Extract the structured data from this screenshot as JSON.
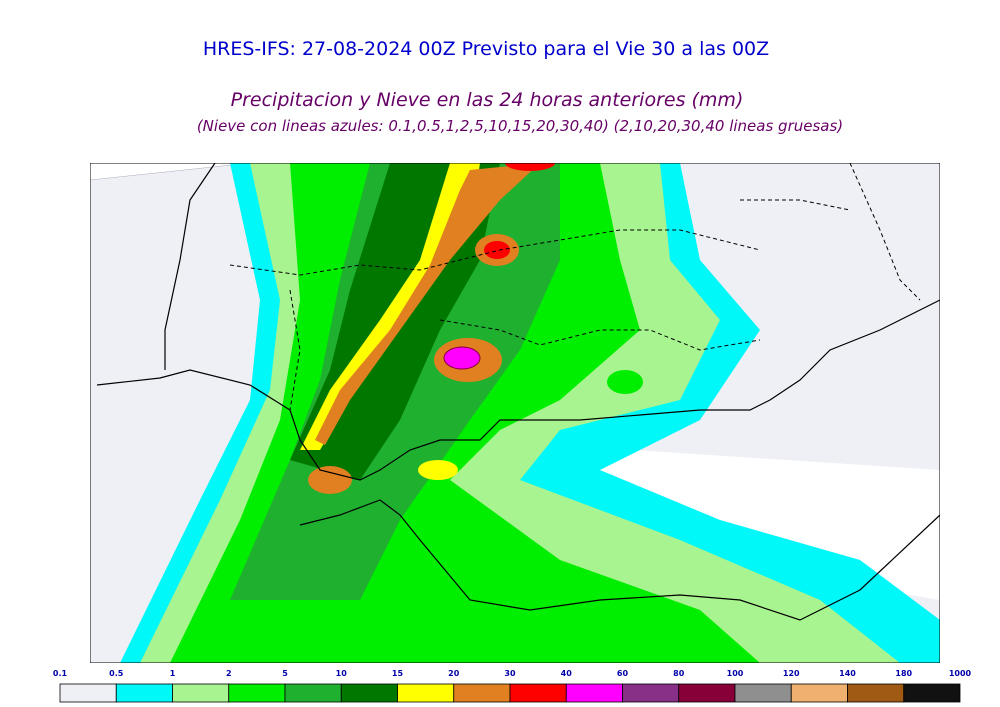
{
  "header": {
    "title": "HRES-IFS: 27-08-2024 00Z Previsto para el Vie 30 a las 00Z",
    "subtitle": "Precipitacion y Nieve en las 24 horas anteriores (mm)",
    "note": "(Nieve con lineas azules: 0.1,0.5,1,2,5,10,15,20,30,40)  (2,10,20,30,40 lineas gruesas)"
  },
  "legend": {
    "labels": [
      "0.1",
      "0.5",
      "1",
      "2",
      "5",
      "10",
      "15",
      "20",
      "30",
      "40",
      "60",
      "80",
      "100",
      "120",
      "140",
      "180",
      "1000"
    ],
    "colors": [
      "#eef0f6",
      "#00f8f8",
      "#a8f490",
      "#00ee00",
      "#20b030",
      "#007800",
      "#ffff00",
      "#e08020",
      "#ff0000",
      "#ff00ff",
      "#882f88",
      "#880038",
      "#8f8f8f",
      "#f0b070",
      "#a05a14",
      "#111111"
    ]
  }
}
